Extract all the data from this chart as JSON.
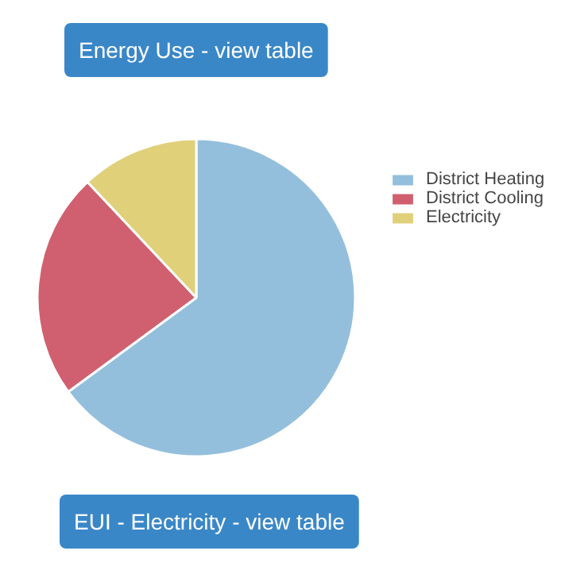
{
  "chart_data": {
    "type": "pie",
    "title": "Energy Use - view table",
    "categories": [
      "District Heating",
      "District Cooling",
      "Electricity"
    ],
    "values": [
      64.9,
      23.1,
      12.0
    ],
    "colors": [
      "#94bfdc",
      "#d0606f",
      "#e0d07a"
    ],
    "legend": "top right",
    "annotations": [
      "EUI - Electricity - view table"
    ]
  }
}
